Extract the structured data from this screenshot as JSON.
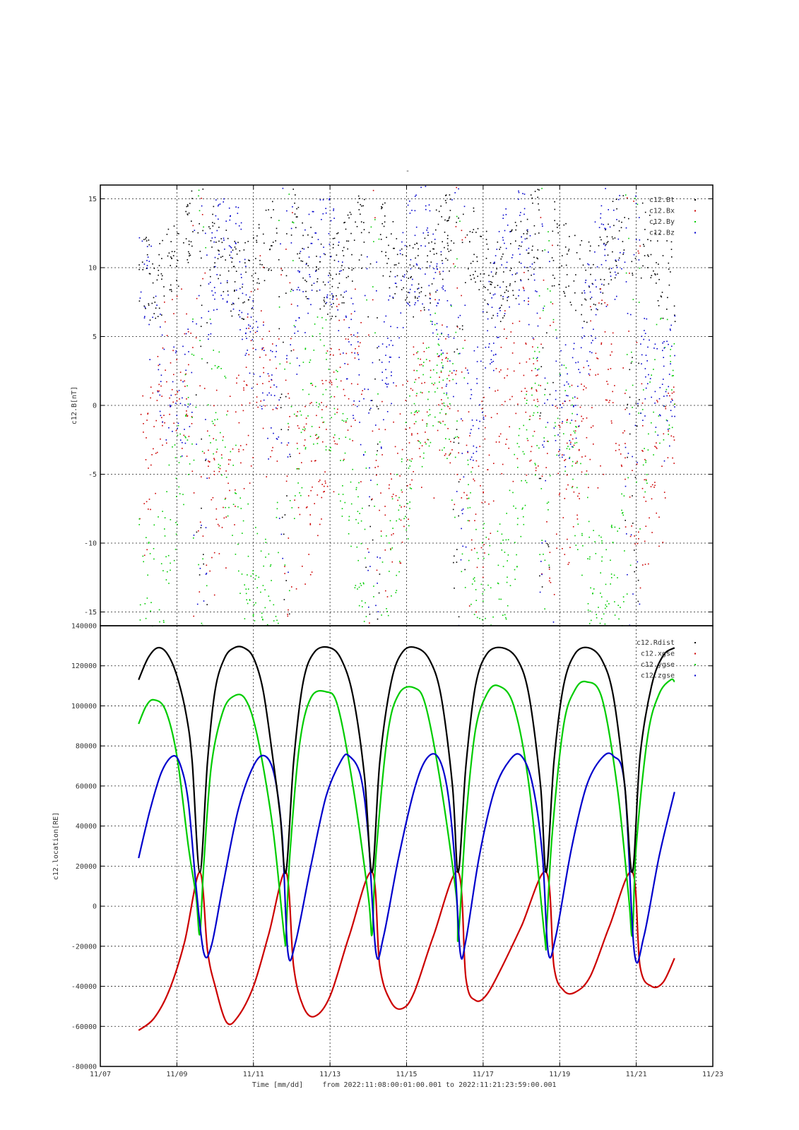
{
  "page_title": "-",
  "footer": {
    "xlabel": "Time [mm/dd]",
    "range_text": "from 2022:11:08:00:01:00.001  to  2022:11:21:23:59:00.001"
  },
  "x_axis": {
    "ticks": [
      {
        "day": 7,
        "label": "11/07"
      },
      {
        "day": 9,
        "label": "11/09"
      },
      {
        "day": 11,
        "label": "11/11"
      },
      {
        "day": 13,
        "label": "11/13"
      },
      {
        "day": 15,
        "label": "11/15"
      },
      {
        "day": 17,
        "label": "11/17"
      },
      {
        "day": 19,
        "label": "11/19"
      },
      {
        "day": 21,
        "label": "11/21"
      },
      {
        "day": 23,
        "label": "11/23"
      }
    ],
    "xlim_days": [
      7,
      23
    ],
    "data_start_day": 8.0,
    "data_end_day": 22.0
  },
  "chart_data": [
    {
      "type": "scatter",
      "ylabel": "c12.B[nT]",
      "ylim": [
        -16,
        16
      ],
      "yticks": [
        15,
        10,
        5,
        0,
        -5,
        -10,
        -15
      ],
      "grid": true,
      "legend_position": "top-right",
      "series": [
        {
          "name": "c12.Bt",
          "color": "#000000"
        },
        {
          "name": "c12.Bx",
          "color": "#cc0000"
        },
        {
          "name": "c12.By",
          "color": "#00cc00"
        },
        {
          "name": "c12.Bz",
          "color": "#0000cc"
        }
      ],
      "description_note": ""
    },
    {
      "type": "line",
      "ylabel": "c12.location[RE]",
      "ylim": [
        -80000,
        140000
      ],
      "yticks": [
        140000,
        120000,
        100000,
        80000,
        60000,
        40000,
        20000,
        0,
        -20000,
        -40000,
        -60000,
        -80000
      ],
      "grid": true,
      "legend_position": "top-right",
      "orbit_apogee_days": [
        8.5,
        10.75,
        13.0,
        15.25,
        17.5,
        19.75
      ],
      "orbit_perigee_days": [
        9.6,
        11.85,
        14.1,
        16.35,
        18.65,
        20.9
      ],
      "series": [
        {
          "name": "c12.Rdist",
          "color": "#000000",
          "x": [
            8.0,
            8.25,
            8.5,
            8.75,
            9.0,
            9.25,
            9.4,
            9.6,
            9.8,
            10.0,
            10.25,
            10.5,
            10.75,
            11.0,
            11.25,
            11.5,
            11.7,
            11.85,
            12.05,
            12.3,
            12.6,
            13.0,
            13.3,
            13.6,
            13.9,
            14.1,
            14.3,
            14.6,
            14.9,
            15.25,
            15.6,
            15.9,
            16.2,
            16.35,
            16.55,
            16.8,
            17.1,
            17.5,
            17.9,
            18.2,
            18.5,
            18.65,
            18.85,
            19.1,
            19.4,
            19.75,
            20.1,
            20.4,
            20.7,
            20.9,
            21.1,
            21.4,
            21.7,
            22.0
          ],
          "y": [
            113000,
            124000,
            129000,
            126000,
            115000,
            95000,
            72000,
            17000,
            72000,
            108000,
            124000,
            129000,
            129000,
            124000,
            108000,
            75000,
            45000,
            17000,
            72000,
            112000,
            127000,
            129000,
            123000,
            105000,
            65000,
            17000,
            72000,
            112000,
            127000,
            129000,
            123000,
            105000,
            60000,
            17000,
            70000,
            110000,
            126000,
            129000,
            123000,
            105000,
            60000,
            17000,
            72000,
            110000,
            126000,
            129000,
            123000,
            105000,
            60000,
            17000,
            75000,
            110000,
            125000,
            129000
          ]
        },
        {
          "name": "c12.xgse",
          "color": "#cc0000",
          "x": [
            8.0,
            8.4,
            8.8,
            9.2,
            9.6,
            9.8,
            10.0,
            10.3,
            10.6,
            11.0,
            11.4,
            11.85,
            12.05,
            12.3,
            12.6,
            13.0,
            13.5,
            14.1,
            14.3,
            14.6,
            14.9,
            15.2,
            15.7,
            16.35,
            16.55,
            16.8,
            17.1,
            17.5,
            18.0,
            18.65,
            18.85,
            19.1,
            19.4,
            19.8,
            20.3,
            20.9,
            21.1,
            21.4,
            21.7,
            22.0
          ],
          "y": [
            -62000,
            -56000,
            -42000,
            -18000,
            17000,
            -22000,
            -40000,
            -58000,
            -55000,
            -40000,
            -14000,
            17000,
            -30000,
            -50000,
            -55000,
            -45000,
            -15000,
            17000,
            -30000,
            -48000,
            -51000,
            -43000,
            -15000,
            17000,
            -36000,
            -47000,
            -44000,
            -30000,
            -10000,
            17000,
            -30000,
            -42000,
            -43000,
            -35000,
            -10000,
            17000,
            -30000,
            -40000,
            -38000,
            -26000
          ]
        },
        {
          "name": "c12.ygse",
          "color": "#00cc00",
          "x": [
            8.0,
            8.2,
            8.4,
            8.7,
            9.0,
            9.3,
            9.5,
            9.6,
            9.7,
            9.9,
            10.2,
            10.5,
            10.8,
            11.1,
            11.5,
            11.8,
            11.85,
            11.95,
            12.2,
            12.5,
            12.9,
            13.2,
            13.6,
            14.0,
            14.1,
            14.2,
            14.5,
            14.8,
            15.2,
            15.5,
            15.9,
            16.3,
            16.35,
            16.55,
            16.8,
            17.1,
            17.4,
            17.8,
            18.2,
            18.6,
            18.65,
            18.8,
            19.1,
            19.4,
            19.7,
            20.1,
            20.5,
            20.8,
            20.9,
            21.0,
            21.3,
            21.6,
            21.9,
            22.0
          ],
          "y": [
            91000,
            100000,
            103000,
            98000,
            75000,
            30000,
            5000,
            -14000,
            20000,
            70000,
            97000,
            105000,
            103000,
            85000,
            40000,
            -14000,
            -14000,
            25000,
            80000,
            104000,
            107000,
            100000,
            60000,
            5000,
            -14000,
            25000,
            85000,
            106000,
            109000,
            100000,
            60000,
            5000,
            -16000,
            43000,
            88000,
            106000,
            110000,
            100000,
            60000,
            -14000,
            -14000,
            35000,
            90000,
            108000,
            112000,
            104000,
            60000,
            5000,
            -14000,
            30000,
            85000,
            106000,
            113000,
            112000
          ]
        },
        {
          "name": "c12.zgse",
          "color": "#0000cc",
          "x": [
            8.0,
            8.3,
            8.6,
            8.9,
            9.1,
            9.3,
            9.5,
            9.7,
            9.9,
            10.2,
            10.6,
            11.0,
            11.3,
            11.55,
            11.75,
            11.9,
            12.1,
            12.5,
            12.9,
            13.3,
            13.5,
            13.8,
            14.0,
            14.2,
            14.4,
            14.8,
            15.2,
            15.5,
            15.8,
            16.05,
            16.25,
            16.4,
            16.55,
            16.9,
            17.3,
            17.7,
            18.0,
            18.3,
            18.55,
            18.7,
            18.9,
            19.3,
            19.7,
            20.1,
            20.4,
            20.7,
            20.95,
            21.2,
            21.6,
            22.0
          ],
          "y": [
            24000,
            48000,
            67000,
            75000,
            70000,
            52000,
            10000,
            -23000,
            -20000,
            10000,
            48000,
            70000,
            75000,
            65000,
            35000,
            -23000,
            -18000,
            20000,
            55000,
            73000,
            75000,
            65000,
            35000,
            -23000,
            -15000,
            25000,
            58000,
            73000,
            75000,
            60000,
            25000,
            -23000,
            -17000,
            25000,
            58000,
            73000,
            75000,
            60000,
            25000,
            -23000,
            -15000,
            28000,
            60000,
            74000,
            75000,
            60000,
            -23000,
            -15000,
            25000,
            57000
          ]
        }
      ]
    }
  ]
}
